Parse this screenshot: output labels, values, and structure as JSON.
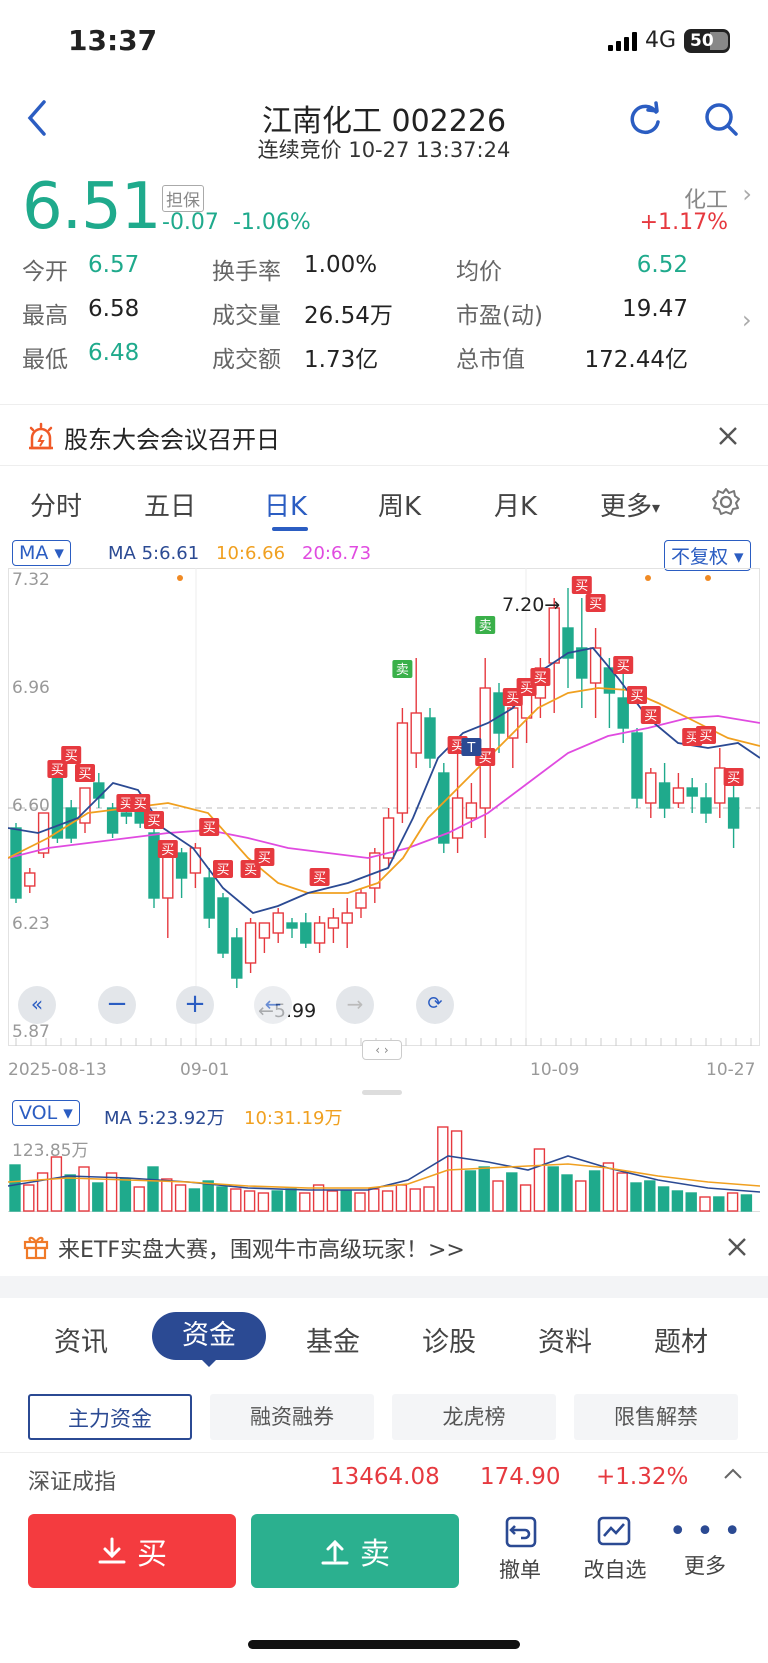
{
  "status": {
    "time": "13:37",
    "network": "4G",
    "battery": "50"
  },
  "header": {
    "title": "江南化工 002226",
    "subtitle": "连续竞价 10-27 13:37:24"
  },
  "quote": {
    "price": "6.51",
    "tag": "担保",
    "change": "-0.07",
    "change_pct": "-1.06%",
    "sector": "化工",
    "sector_change": "+1.17%",
    "stats": [
      {
        "label": "今开",
        "value": "6.57"
      },
      {
        "label": "换手率",
        "value": "1.00%"
      },
      {
        "label": "均价",
        "value": "6.52"
      },
      {
        "label": "最高",
        "value": "6.58"
      },
      {
        "label": "成交量",
        "value": "26.54万"
      },
      {
        "label": "市盈(动)",
        "value": "19.47"
      },
      {
        "label": "最低",
        "value": "6.48"
      },
      {
        "label": "成交额",
        "value": "1.73亿"
      },
      {
        "label": "总市值",
        "value": "172.44亿"
      }
    ]
  },
  "notice": {
    "text": "股东大会会议召开日"
  },
  "kline_tabs": [
    "分时",
    "五日",
    "日K",
    "周K",
    "月K",
    "更多"
  ],
  "chart": {
    "ma_button": "MA",
    "ma5": "MA 5:6.61",
    "ma10": "10:6.66",
    "ma20": "20:6.73",
    "adjust": "不复权",
    "y_labels": [
      "7.32",
      "6.96",
      "6.60",
      "6.23",
      "5.87"
    ],
    "x_labels": [
      "2025-08-13",
      "09-01",
      "10-09",
      "10-27"
    ],
    "high_mark": "7.20→",
    "low_mark": "←5.99",
    "buy_label": "买",
    "sell_label": "卖",
    "t_label": "T",
    "vol_button": "VOL",
    "vol_ma5": "MA 5:23.92万",
    "vol_ma10": "10:31.19万",
    "vol_max": "123.85万",
    "colors": {
      "up": "#e6393f",
      "down": "#1faa8c",
      "ma5": "#2b4a93",
      "ma10": "#f0a020",
      "ma20": "#e04be0"
    }
  },
  "banner": {
    "text": "来ETF实盘大赛，围观牛市高级玩家！>>"
  },
  "info_tabs": [
    "资讯",
    "资金",
    "基金",
    "诊股",
    "资料",
    "题材"
  ],
  "sub_tabs": [
    "主力资金",
    "融资融券",
    "龙虎榜",
    "限售解禁"
  ],
  "index": {
    "name": "深证成指",
    "value": "13464.08",
    "change": "174.90",
    "pct": "+1.32%"
  },
  "bottom": {
    "buy": "买",
    "sell": "卖",
    "cancel": "撤单",
    "watch": "改自选",
    "more": "更多"
  }
}
